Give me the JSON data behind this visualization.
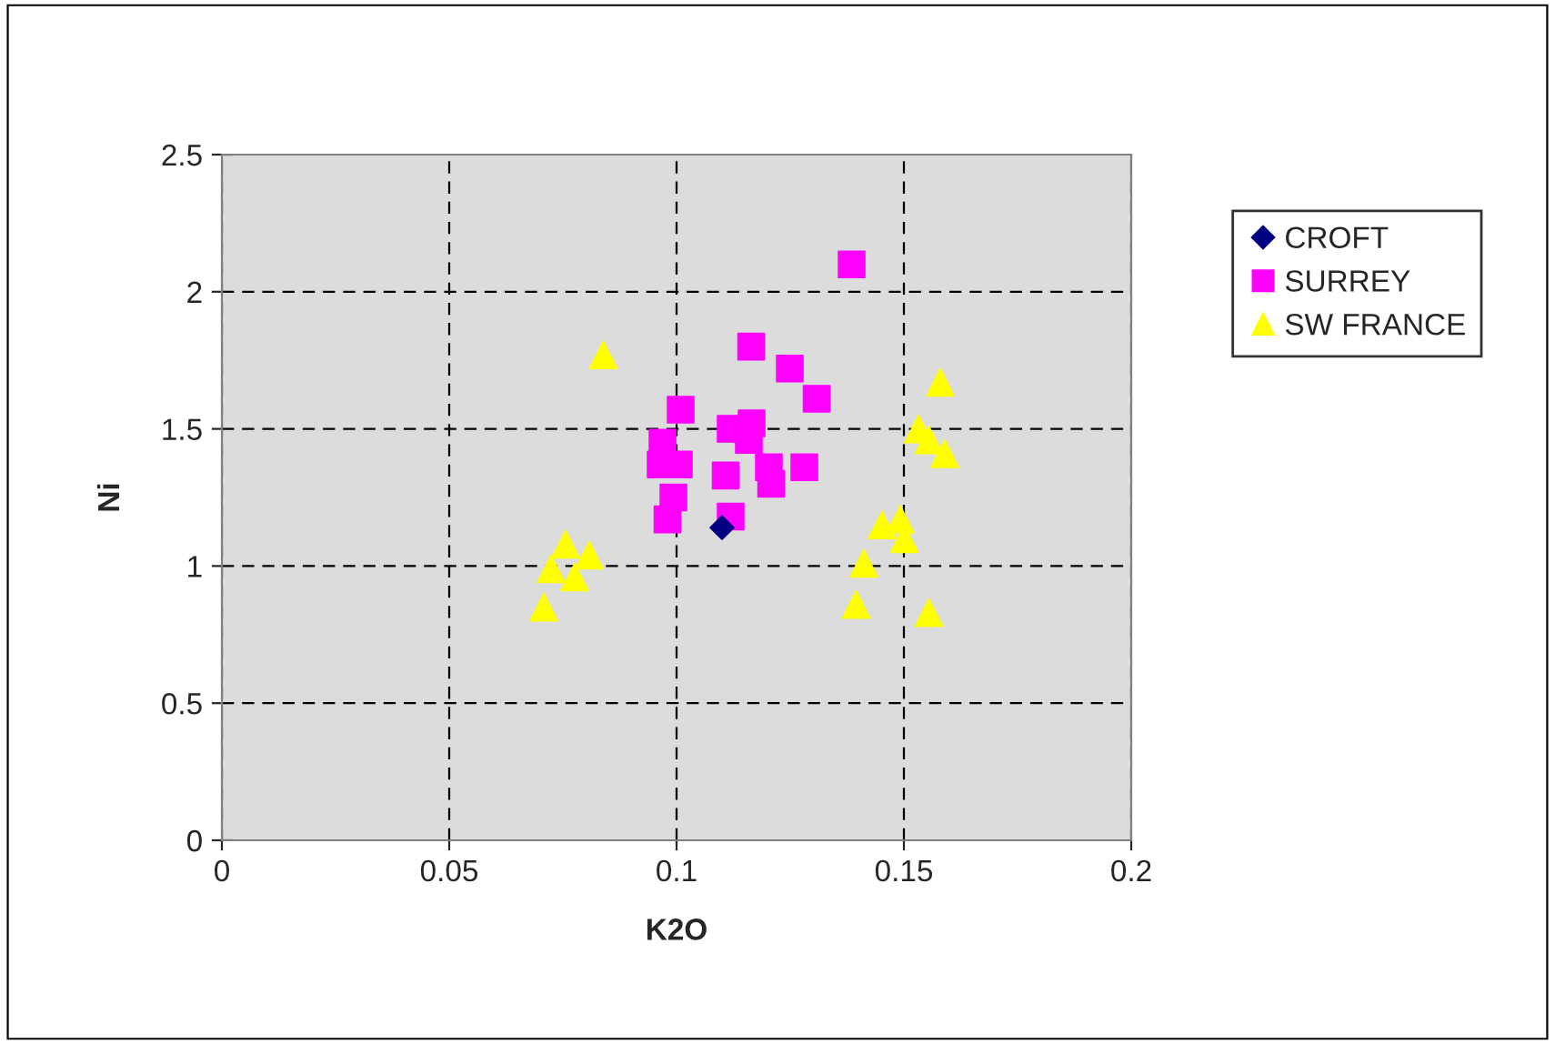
{
  "chart_data": {
    "type": "scatter",
    "xlabel": "K2O",
    "ylabel": "Ni",
    "xlim": [
      0,
      0.2
    ],
    "xticks": [
      0,
      0.05,
      0.1,
      0.15,
      0.2
    ],
    "ylim": [
      0,
      2.5
    ],
    "yticks": [
      0,
      0.5,
      1,
      1.5,
      2,
      2.5
    ],
    "grid": true,
    "legend": "top right",
    "series": [
      {
        "name": "CROFT",
        "color": "#000080",
        "marker": "diamond",
        "x": [
          0.11
        ],
        "values": [
          1.14
        ]
      },
      {
        "name": "SURREY",
        "color": "#ff00ff",
        "marker": "square",
        "x": [
          0.1119,
          0.1165,
          0.1159,
          0.1203,
          0.1208,
          0.1281,
          0.1108,
          0.1119,
          0.0969,
          0.0965,
          0.1005,
          0.0993,
          0.098,
          0.1009,
          0.1164,
          0.1249,
          0.1308,
          0.1385
        ],
        "values": [
          1.5,
          1.52,
          1.46,
          1.36,
          1.3,
          1.36,
          1.33,
          1.18,
          1.45,
          1.37,
          1.37,
          1.25,
          1.17,
          1.57,
          1.8,
          1.72,
          1.61,
          2.1
        ]
      },
      {
        "name": "SW FRANCE",
        "color": "#ffff00",
        "marker": "triangle",
        "x": [
          0.0839,
          0.0708,
          0.0724,
          0.0756,
          0.0776,
          0.0808,
          0.158,
          0.1532,
          0.1555,
          0.159,
          0.1452,
          0.1492,
          0.1501,
          0.1412,
          0.1395,
          0.1555
        ],
        "values": [
          1.77,
          0.85,
          0.99,
          1.08,
          0.96,
          1.04,
          1.67,
          1.5,
          1.46,
          1.41,
          1.15,
          1.17,
          1.1,
          1.01,
          0.86,
          0.83
        ]
      }
    ]
  }
}
